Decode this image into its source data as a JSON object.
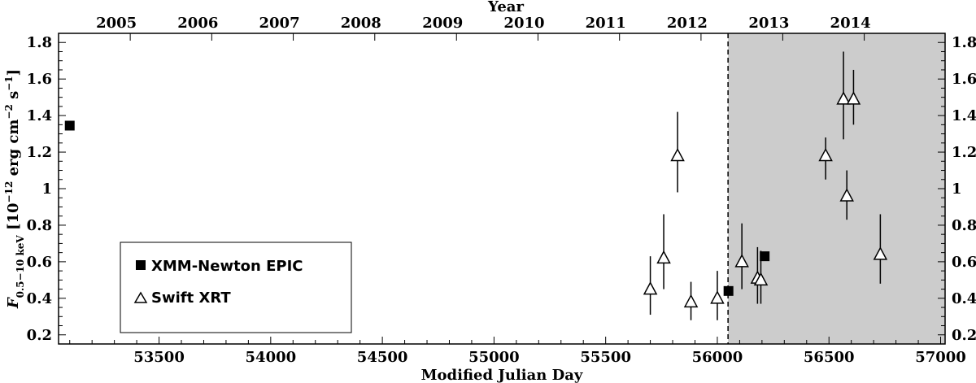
{
  "chart_data": {
    "type": "scatter",
    "xlabel": "Modified Julian Day",
    "ylabel_main": "F",
    "ylabel_sub": "0.5−10 keV",
    "ylabel_unit_pre": " [10",
    "ylabel_unit_exp1": "−12",
    "ylabel_unit_mid": " erg cm",
    "ylabel_unit_exp2": "−2",
    "ylabel_unit_s": " s",
    "ylabel_unit_exp3": "−1",
    "ylabel_unit_post": "]",
    "top_axis_label": "Year",
    "xlim": [
      53050,
      57020
    ],
    "ylim": [
      0.15,
      1.85
    ],
    "x_ticks": [
      53500,
      54000,
      54500,
      55000,
      55500,
      56000,
      56500,
      57000
    ],
    "y_ticks": [
      0.2,
      0.4,
      0.6,
      0.8,
      1,
      1.2,
      1.4,
      1.6,
      1.8
    ],
    "top_ticks": [
      {
        "label": "2005",
        "mjd": 53371
      },
      {
        "label": "2006",
        "mjd": 53736
      },
      {
        "label": "2007",
        "mjd": 54101
      },
      {
        "label": "2008",
        "mjd": 54466
      },
      {
        "label": "2009",
        "mjd": 54832
      },
      {
        "label": "2010",
        "mjd": 55197
      },
      {
        "label": "2011",
        "mjd": 55562
      },
      {
        "label": "2012",
        "mjd": 55927
      },
      {
        "label": "2013",
        "mjd": 56293
      },
      {
        "label": "2014",
        "mjd": 56658
      }
    ],
    "shaded_region": {
      "x0": 56048,
      "x1": 57020,
      "color": "#cccccc"
    },
    "dashed_line_x": 56048,
    "legend_placement": "left-middle",
    "series": [
      {
        "name": "XMM-Newton EPIC",
        "marker": "square",
        "points": [
          {
            "x": 53100,
            "y": 1.345,
            "lo": 1.32,
            "hi": 1.37
          },
          {
            "x": 56050,
            "y": 0.44,
            "lo": 0.43,
            "hi": 0.45
          },
          {
            "x": 56212,
            "y": 0.63,
            "lo": 0.62,
            "hi": 0.64
          }
        ]
      },
      {
        "name": "Swift XRT",
        "marker": "triangle-open",
        "points": [
          {
            "x": 55700,
            "y": 0.45,
            "lo": 0.31,
            "hi": 0.63
          },
          {
            "x": 55760,
            "y": 0.62,
            "lo": 0.45,
            "hi": 0.86
          },
          {
            "x": 55822,
            "y": 1.18,
            "lo": 0.98,
            "hi": 1.42
          },
          {
            "x": 55882,
            "y": 0.38,
            "lo": 0.28,
            "hi": 0.49
          },
          {
            "x": 56000,
            "y": 0.4,
            "lo": 0.28,
            "hi": 0.55
          },
          {
            "x": 56110,
            "y": 0.6,
            "lo": 0.45,
            "hi": 0.81
          },
          {
            "x": 56180,
            "y": 0.51,
            "lo": 0.37,
            "hi": 0.68
          },
          {
            "x": 56195,
            "y": 0.5,
            "lo": 0.37,
            "hi": 0.66
          },
          {
            "x": 56485,
            "y": 1.18,
            "lo": 1.05,
            "hi": 1.28
          },
          {
            "x": 56565,
            "y": 1.49,
            "lo": 1.27,
            "hi": 1.75
          },
          {
            "x": 56580,
            "y": 0.96,
            "lo": 0.83,
            "hi": 1.1
          },
          {
            "x": 56610,
            "y": 1.49,
            "lo": 1.35,
            "hi": 1.65
          },
          {
            "x": 56730,
            "y": 0.64,
            "lo": 0.48,
            "hi": 0.86
          }
        ]
      }
    ]
  }
}
